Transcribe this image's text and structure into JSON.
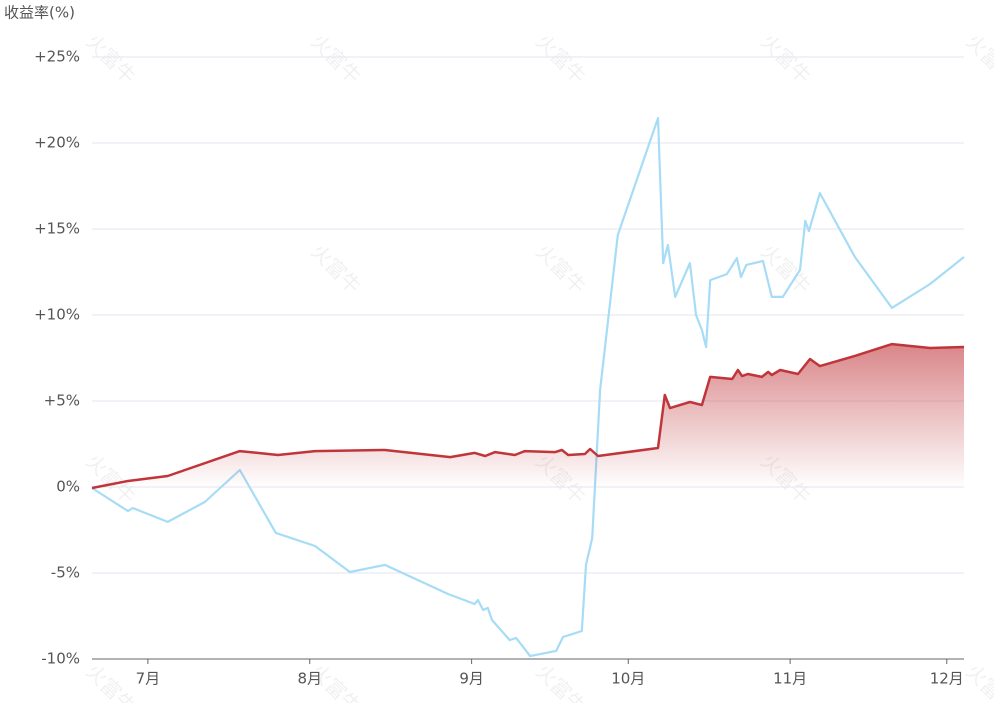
{
  "chart_data": {
    "type": "line",
    "y_label": "收益率(%)",
    "watermark": "火富牛",
    "xlim": [
      -10.7,
      156.3
    ],
    "xticks": [
      {
        "value": 0,
        "label": "7月"
      },
      {
        "value": 31,
        "label": "8月"
      },
      {
        "value": 62,
        "label": "9月"
      },
      {
        "value": 92,
        "label": "10月"
      },
      {
        "value": 123,
        "label": "11月"
      },
      {
        "value": 153,
        "label": "12月"
      }
    ],
    "ylim": [
      -10,
      25
    ],
    "yticks": [
      {
        "value": -10,
        "label": "-10%"
      },
      {
        "value": -5,
        "label": "-5%"
      },
      {
        "value": 0,
        "label": "0%"
      },
      {
        "value": 5,
        "label": "+5%"
      },
      {
        "value": 10,
        "label": "+10%"
      },
      {
        "value": 15,
        "label": "+15%"
      },
      {
        "value": 20,
        "label": "+20%"
      },
      {
        "value": 25,
        "label": "+25%"
      }
    ],
    "grid": true,
    "series": [
      {
        "color": "#a6dcf5",
        "area": false,
        "x": [
          -10.7,
          -3.8,
          -2.9,
          3.8,
          10.9,
          17.6,
          24.5,
          32.0,
          38.7,
          45.4,
          57.5,
          62.6,
          63.2,
          64.2,
          65.1,
          65.9,
          69.3,
          70.5,
          71.6,
          73.2,
          78.2,
          79.5,
          83.1,
          83.9,
          85.1,
          86.6,
          90.0,
          97.7,
          98.7,
          99.6,
          101.0,
          103.8,
          105.0,
          106.1,
          106.9,
          107.7,
          110.9,
          112.8,
          113.6,
          114.6,
          117.8,
          119.5,
          121.6,
          124.9,
          125.9,
          126.6,
          128.7,
          135.4,
          142.5,
          149.8,
          156.3
        ],
        "values": [
          -0.06,
          -1.4,
          -1.22,
          -2.03,
          -0.87,
          0.99,
          -2.67,
          -3.43,
          -4.94,
          -4.53,
          -6.22,
          -6.8,
          -6.57,
          -7.15,
          -7.03,
          -7.73,
          -8.9,
          -8.78,
          -9.19,
          -9.83,
          -9.53,
          -8.72,
          -8.37,
          -4.53,
          -2.97,
          5.64,
          14.65,
          21.45,
          13.02,
          14.07,
          11.05,
          13.02,
          9.99,
          9.13,
          8.14,
          12.03,
          12.38,
          13.31,
          12.21,
          12.91,
          13.14,
          11.05,
          11.05,
          12.62,
          15.47,
          14.88,
          17.09,
          13.37,
          10.41,
          11.8,
          13.37
        ]
      },
      {
        "color": "#c0353a",
        "area": true,
        "x": [
          -10.7,
          -3.8,
          3.8,
          17.6,
          24.9,
          32.0,
          45.4,
          57.9,
          62.6,
          64.6,
          66.5,
          70.3,
          71.3,
          72.2,
          78.0,
          79.3,
          80.5,
          83.7,
          84.7,
          86.2,
          97.7,
          99.0,
          100.0,
          103.8,
          106.1,
          107.7,
          111.9,
          113.0,
          113.8,
          114.9,
          117.6,
          118.8,
          119.5,
          121.1,
          124.5,
          126.8,
          128.7,
          135.4,
          142.5,
          149.8,
          156.3
        ],
        "values": [
          -0.06,
          0.35,
          0.64,
          2.09,
          1.86,
          2.09,
          2.15,
          1.74,
          1.98,
          1.8,
          2.03,
          1.86,
          1.98,
          2.09,
          2.03,
          2.15,
          1.86,
          1.92,
          2.21,
          1.8,
          2.27,
          5.35,
          4.59,
          4.94,
          4.77,
          6.4,
          6.28,
          6.8,
          6.45,
          6.57,
          6.4,
          6.69,
          6.51,
          6.8,
          6.57,
          7.44,
          7.03,
          7.62,
          8.31,
          8.08,
          8.14
        ]
      }
    ]
  }
}
